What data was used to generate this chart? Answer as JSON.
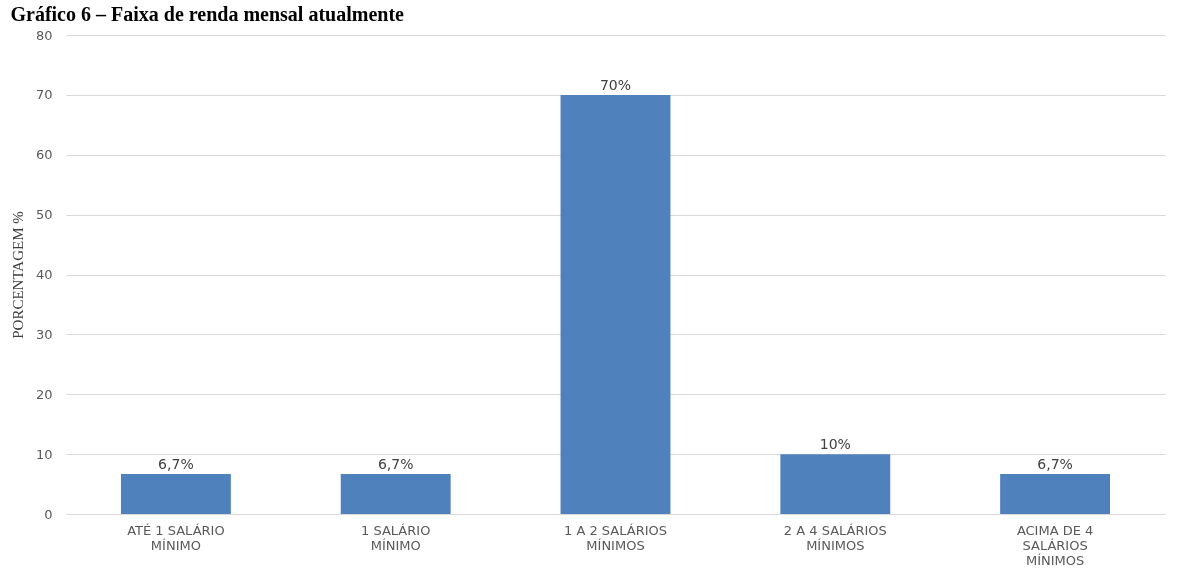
{
  "chart_data": {
    "type": "bar",
    "title": "Gráfico 6 – Faixa de renda mensal atualmente",
    "ylabel": "PORCENTAGEM %",
    "categories": [
      "ATÉ 1 SALÁRIO MÍNIMO",
      "1 SALÁRIO MÍNIMO",
      "1 A 2 SALÁRIOS MÍNIMOS",
      "2 A 4 SALÁRIOS MÍNIMOS",
      "ACIMA DE 4 SALÁRIOS MÍNIMOS"
    ],
    "values": [
      6.7,
      6.7,
      70,
      10,
      6.7
    ],
    "color": "#4f81bd",
    "value_labels": [
      "6,7%",
      "6,7%",
      "70%",
      "10%",
      "6,7%"
    ],
    "ylim": [
      0,
      80
    ],
    "yticks": [
      0,
      10,
      20,
      30,
      40,
      50,
      60,
      70,
      80
    ],
    "grid": "y"
  }
}
